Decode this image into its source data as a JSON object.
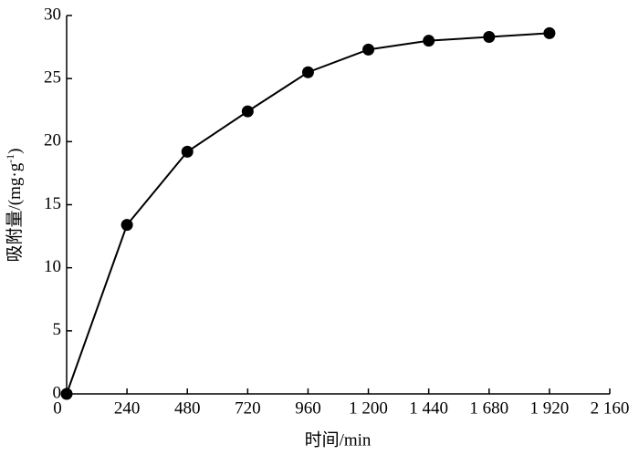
{
  "chart_data": {
    "type": "line",
    "xlabel": "时间/min",
    "ylabel": [
      "吸附量/(mg·g",
      "-1",
      ")"
    ],
    "x": [
      0,
      240,
      480,
      720,
      960,
      1200,
      1440,
      1680,
      1920
    ],
    "series": [
      {
        "color": "#000000",
        "values": [
          0,
          13.4,
          19.2,
          22.4,
          25.5,
          27.3,
          28.0,
          28.3,
          28.6
        ]
      }
    ],
    "xlim": [
      0,
      2160
    ],
    "xticks": [
      0,
      240,
      480,
      720,
      960,
      {
        "value": 1200,
        "label": "1 200"
      },
      {
        "value": 1440,
        "label": "1 440"
      },
      {
        "value": 1680,
        "label": "1 680"
      },
      {
        "value": 1920,
        "label": "1 920"
      },
      {
        "value": 2160,
        "label": "2 160"
      }
    ],
    "ylim": [
      0,
      30
    ],
    "yticks": [
      0,
      5,
      10,
      15,
      20,
      25,
      30
    ]
  }
}
